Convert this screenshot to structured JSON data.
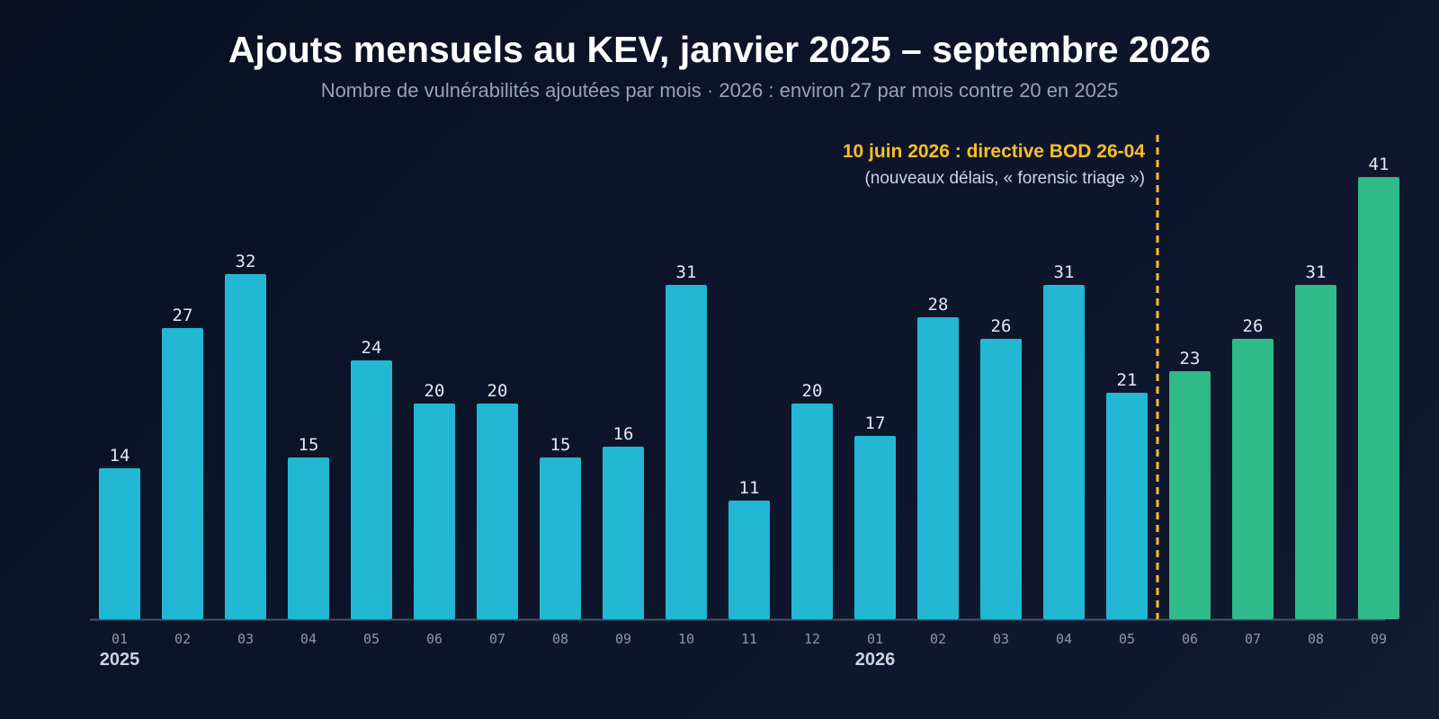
{
  "chart_data": {
    "type": "bar",
    "title": "Ajouts mensuels au KEV, janvier 2025 – septembre 2026",
    "subtitle": "Nombre de vulnérabilités ajoutées par mois · 2026 : environ 27 par mois contre 20 en 2025",
    "categories": [
      "01",
      "02",
      "03",
      "04",
      "05",
      "06",
      "07",
      "08",
      "09",
      "10",
      "11",
      "12",
      "01",
      "02",
      "03",
      "04",
      "05",
      "06",
      "07",
      "08",
      "09"
    ],
    "values": [
      14,
      27,
      32,
      15,
      24,
      20,
      20,
      15,
      16,
      31,
      11,
      20,
      17,
      28,
      26,
      31,
      21,
      23,
      26,
      31,
      41
    ],
    "year_labels": [
      {
        "index": 0,
        "label": "2025"
      },
      {
        "index": 12,
        "label": "2026"
      }
    ],
    "highlight_from_index": 17,
    "ylim": [
      0,
      45
    ],
    "annotation": {
      "title": "10 juin 2026 : directive BOD 26-04",
      "subtitle": "(nouveaux délais, « forensic triage »)",
      "between_index": [
        16,
        17
      ]
    },
    "colors": {
      "bar": "#22b8d4",
      "bar_highlight": "#2fba8a",
      "annotation": "#fbbf24",
      "axis": "#475569"
    },
    "grid": false
  }
}
